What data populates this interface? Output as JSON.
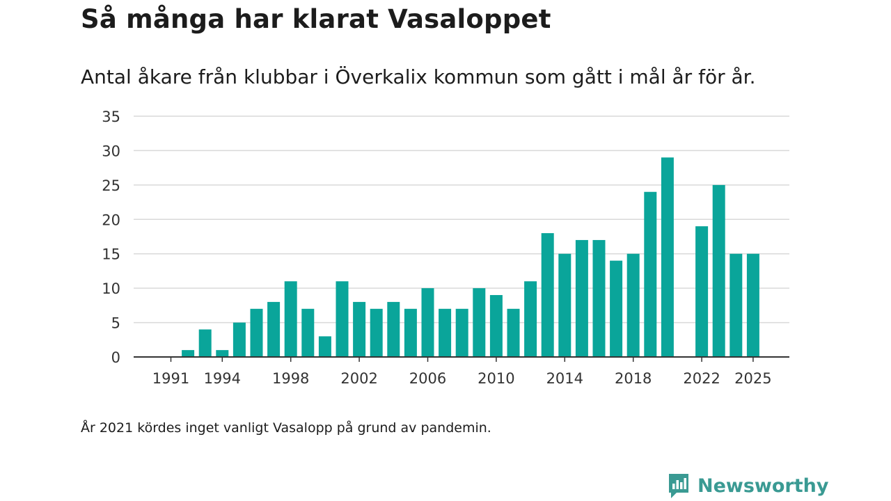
{
  "header": {
    "title": "Så många har klarat Vasaloppet",
    "subtitle": "Antal åkare från klubbar i Överkalix kommun som gått i mål år för år."
  },
  "footer": {
    "note": "År 2021 kördes inget vanligt Vasalopp på grund av pandemin.",
    "brand": "Newsworthy"
  },
  "colors": {
    "bar": "#0aa59a",
    "grid": "#d9d9d9",
    "axis": "#333333",
    "brand": "#3a9a93"
  },
  "chart_data": {
    "type": "bar",
    "title": "Så många har klarat Vasaloppet",
    "subtitle": "Antal åkare från klubbar i Överkalix kommun som gått i mål år för år.",
    "xlabel": "",
    "ylabel": "",
    "ylim": [
      0,
      35
    ],
    "yticks": [
      0,
      5,
      10,
      15,
      20,
      25,
      30,
      35
    ],
    "xticks": [
      1991,
      1994,
      1998,
      2002,
      2006,
      2010,
      2014,
      2018,
      2022,
      2025
    ],
    "grid": true,
    "categories": [
      1991,
      1992,
      1993,
      1994,
      1995,
      1996,
      1997,
      1998,
      1999,
      2000,
      2001,
      2002,
      2003,
      2004,
      2005,
      2006,
      2007,
      2008,
      2009,
      2010,
      2011,
      2012,
      2013,
      2014,
      2015,
      2016,
      2017,
      2018,
      2019,
      2020,
      2021,
      2022,
      2023,
      2024,
      2025
    ],
    "values": [
      0,
      1,
      4,
      1,
      5,
      7,
      8,
      11,
      7,
      3,
      11,
      8,
      7,
      8,
      7,
      10,
      7,
      7,
      10,
      9,
      7,
      11,
      18,
      15,
      17,
      17,
      14,
      15,
      24,
      29,
      null,
      19,
      25,
      15,
      15
    ]
  }
}
